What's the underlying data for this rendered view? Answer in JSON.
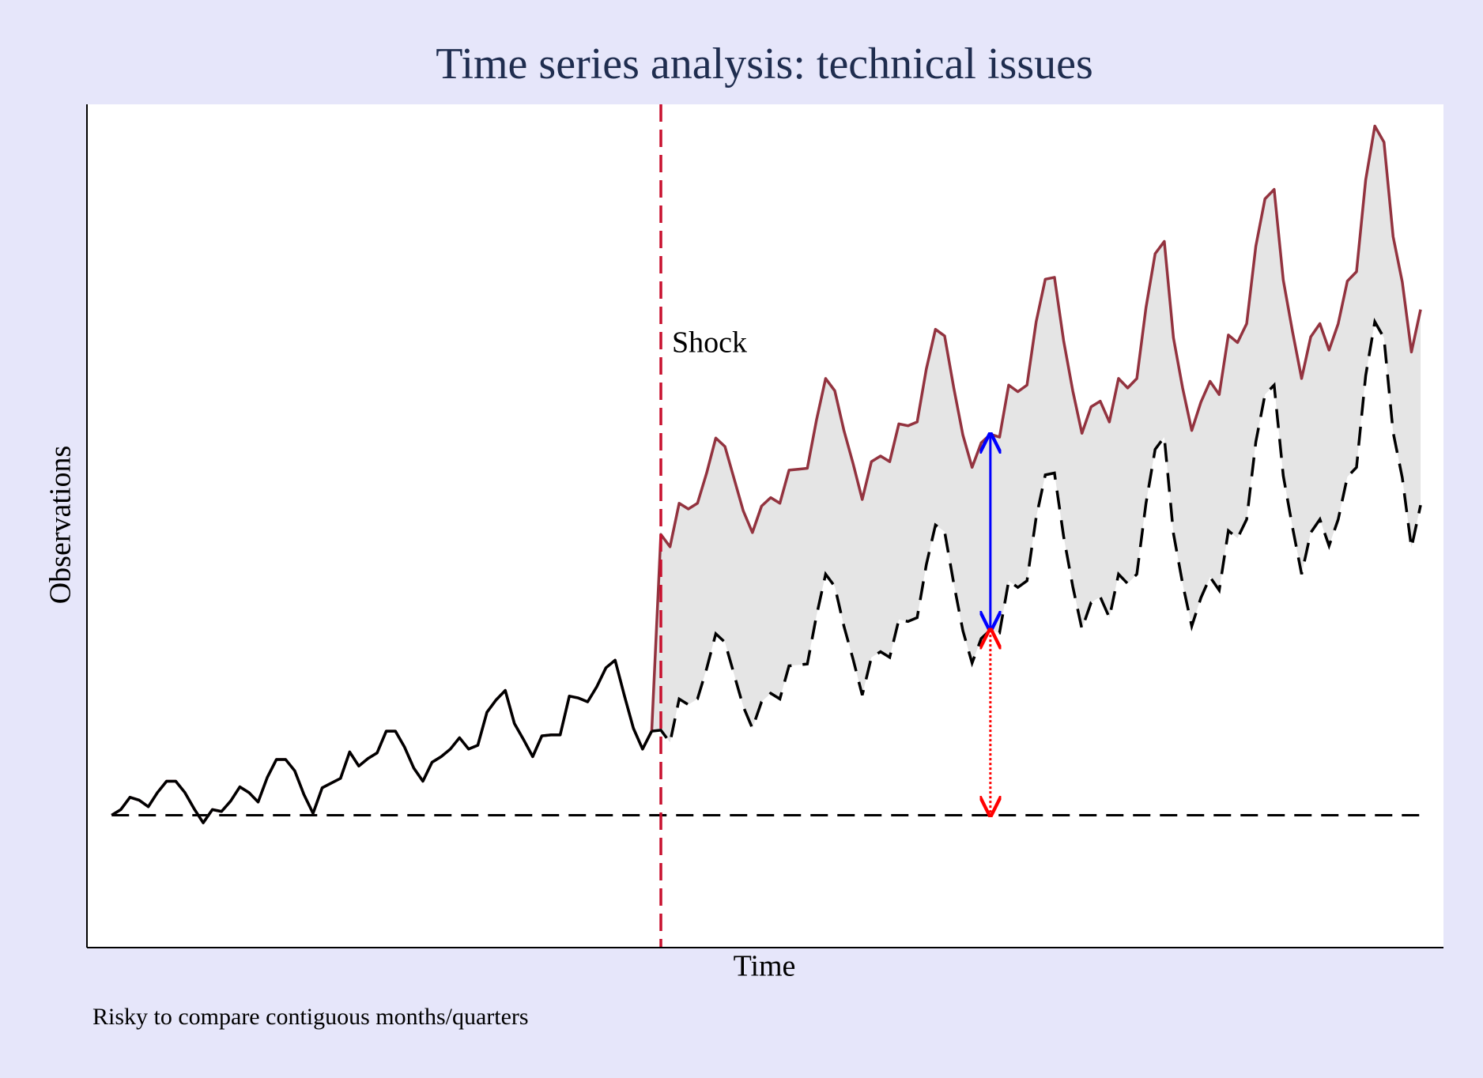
{
  "chart_data": {
    "type": "line",
    "title": "Time series analysis: technical issues",
    "xlabel": "Time",
    "ylabel": "Observations",
    "note": "Risky to compare contiguous months/quarters",
    "shock": {
      "x": 60,
      "text": "Shock",
      "color": "#c8102e"
    },
    "baseline": 14.0,
    "gap_x": 96,
    "shade_color": "#e5e5e5",
    "xlim": [
      -2.7,
      145.5
    ],
    "ylim": [
      0,
      89.2
    ],
    "series": [
      {
        "color": "#93333f",
        "values": [
          14.0,
          14.6,
          15.9,
          15.6,
          14.9,
          16.4,
          17.6,
          17.6,
          16.4,
          14.7,
          13.2,
          14.6,
          14.4,
          15.5,
          17.0,
          16.4,
          15.4,
          18.0,
          19.9,
          19.9,
          18.7,
          16.2,
          14.2,
          16.9,
          17.4,
          17.9,
          20.7,
          19.2,
          20.0,
          20.6,
          22.9,
          22.9,
          21.2,
          19.0,
          17.6,
          19.6,
          20.2,
          21.0,
          22.2,
          21.0,
          21.4,
          24.9,
          26.2,
          27.2,
          23.7,
          22.0,
          20.2,
          22.4,
          22.5,
          22.5,
          26.6,
          26.4,
          26.0,
          27.6,
          29.6,
          30.4,
          26.7,
          23.2,
          21.0,
          22.9,
          43.7,
          42.4,
          47.0,
          46.4,
          47.0,
          50.2,
          53.9,
          53.0,
          49.6,
          46.2,
          43.9,
          46.7,
          47.6,
          47.0,
          50.5,
          50.6,
          50.7,
          55.8,
          60.2,
          58.9,
          54.7,
          51.2,
          47.4,
          51.4,
          52.0,
          51.4,
          55.4,
          55.2,
          55.6,
          61.2,
          65.4,
          64.7,
          59.2,
          54.2,
          50.8,
          53.4,
          54.3,
          54.0,
          59.5,
          58.8,
          59.5,
          66.2,
          70.7,
          70.9,
          64.2,
          58.9,
          54.4,
          57.2,
          57.8,
          55.6,
          60.2,
          59.2,
          60.2,
          67.7,
          73.4,
          74.7,
          64.5,
          59.2,
          54.7,
          57.7,
          59.9,
          58.5,
          64.8,
          64.0,
          66.0,
          74.2,
          79.2,
          80.2,
          70.6,
          65.2,
          60.2,
          64.6,
          66.0,
          63.2,
          66.0,
          70.5,
          71.5,
          81.2,
          86.9,
          85.2,
          75.2,
          70.4,
          63.0,
          67.5
        ]
      },
      {
        "color": "#000000",
        "values": [
          14.0,
          14.6,
          15.9,
          15.6,
          14.9,
          16.4,
          17.6,
          17.6,
          16.4,
          14.7,
          13.2,
          14.6,
          14.4,
          15.5,
          17.0,
          16.4,
          15.4,
          18.0,
          19.9,
          19.9,
          18.7,
          16.2,
          14.2,
          16.9,
          17.4,
          17.9,
          20.7,
          19.2,
          20.0,
          20.6,
          22.9,
          22.9,
          21.2,
          19.0,
          17.6,
          19.6,
          20.2,
          21.0,
          22.2,
          21.0,
          21.4,
          24.9,
          26.2,
          27.2,
          23.7,
          22.0,
          20.2,
          22.4,
          22.5,
          22.5,
          26.6,
          26.4,
          26.0,
          27.6,
          29.6,
          30.4,
          26.7,
          23.2,
          21.0,
          22.9,
          23.0,
          21.7,
          26.3,
          25.7,
          26.3,
          29.5,
          33.2,
          32.3,
          28.9,
          25.5,
          23.2,
          26.0,
          26.9,
          26.3,
          29.8,
          29.9,
          30.0,
          35.1,
          39.5,
          38.2,
          34.0,
          30.5,
          26.7,
          30.7,
          31.3,
          30.7,
          34.7,
          34.5,
          34.9,
          40.5,
          44.7,
          44.0,
          38.5,
          33.5,
          30.1,
          32.7,
          33.6,
          33.3,
          38.8,
          38.1,
          38.8,
          45.5,
          50.0,
          50.2,
          43.5,
          38.2,
          33.7,
          36.5,
          37.1,
          34.9,
          39.5,
          38.5,
          39.5,
          47.0,
          52.7,
          54.0,
          43.8,
          38.5,
          34.0,
          37.0,
          39.2,
          37.8,
          44.1,
          43.3,
          45.3,
          53.5,
          58.5,
          59.5,
          49.9,
          44.5,
          39.5,
          43.9,
          45.3,
          42.5,
          45.3,
          49.8,
          50.8,
          60.5,
          66.2,
          64.5,
          54.5,
          49.7,
          42.3,
          46.8
        ]
      }
    ]
  }
}
